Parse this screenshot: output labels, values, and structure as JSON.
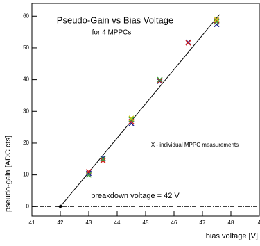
{
  "chart_data": {
    "type": "scatter",
    "title": "Pseudo-Gain vs Bias Voltage",
    "subtitle": "for 4 MPPCs",
    "annotations": [
      "X - individual MPPC measurements",
      "breakdown voltage = 42 V"
    ],
    "xlabel": "bias voltage [V]",
    "ylabel": "pseudo-gain [ADC cts]",
    "x": [
      43,
      43.5,
      44.5,
      45.5,
      46.5,
      47.5
    ],
    "series": [
      {
        "color": "#1a1a8c",
        "values": [
          10.5,
          15.3,
          26.2,
          39.5,
          51.8,
          57.4
        ]
      },
      {
        "color": "#d02020",
        "values": [
          11,
          14.5,
          26.8,
          39.7,
          51.6,
          58.5
        ]
      },
      {
        "color": "#40a040",
        "values": [
          10,
          15,
          27.4,
          40,
          null,
          58.2
        ]
      },
      {
        "color": "#c8c820",
        "values": [
          null,
          null,
          27.8,
          null,
          null,
          59
        ]
      }
    ],
    "fit_line": {
      "x": [
        42,
        47.6
      ],
      "values": [
        0,
        60.5
      ],
      "color": "#000000"
    },
    "hline": 0,
    "xlim": [
      41,
      49
    ],
    "ylim": [
      -3,
      64
    ],
    "xticks": [
      41,
      42,
      43,
      44,
      45,
      46,
      47,
      48,
      {
        "value": 49,
        "label": "4"
      }
    ],
    "yticks": [
      0,
      10,
      20,
      30,
      40,
      50,
      60
    ]
  }
}
